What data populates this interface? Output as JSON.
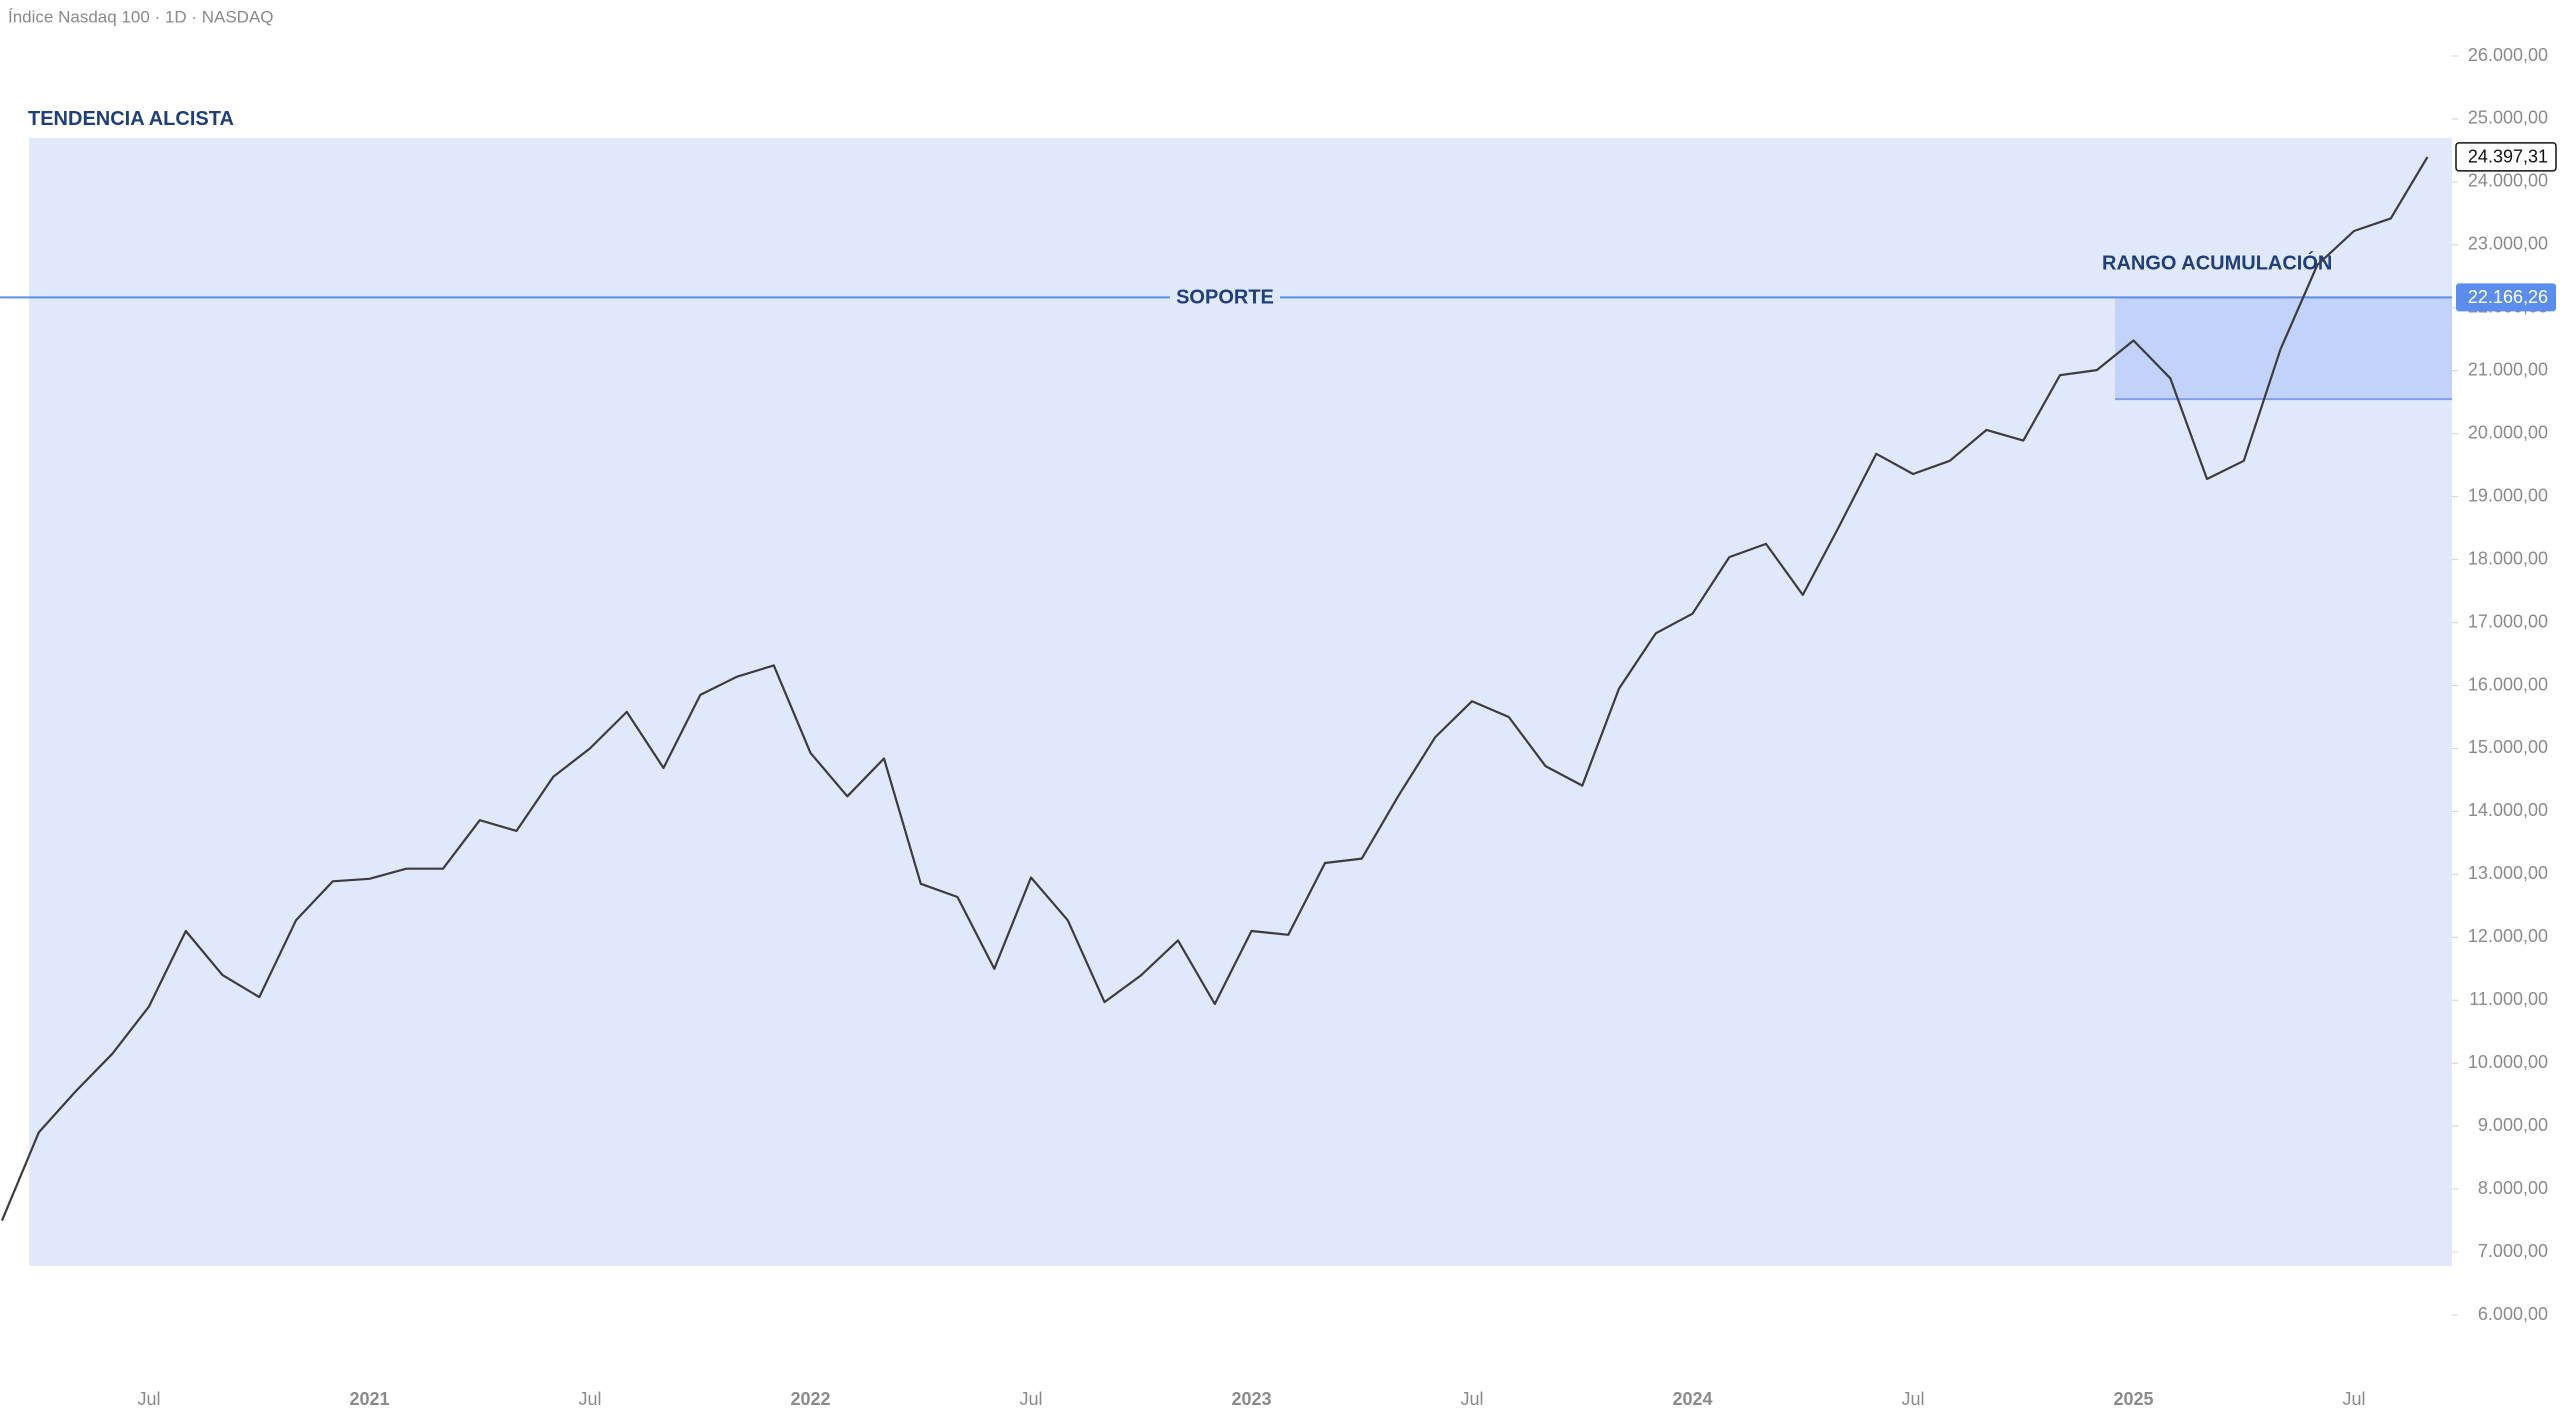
{
  "chart_data": {
    "type": "line",
    "title": "Índice Nasdaq 100 · 1D · NASDAQ",
    "categories": [
      null,
      null,
      null,
      null,
      "Jul",
      null,
      null,
      null,
      null,
      null,
      "2021",
      null,
      null,
      null,
      null,
      null,
      "Jul",
      null,
      null,
      null,
      null,
      null,
      "2022",
      null,
      null,
      null,
      null,
      null,
      "Jul",
      null,
      null,
      null,
      null,
      null,
      "2023",
      null,
      null,
      null,
      null,
      null,
      "Jul",
      null,
      null,
      null,
      null,
      null,
      "2024",
      null,
      null,
      null,
      null,
      null,
      "Jul",
      null,
      null,
      null,
      null,
      null,
      "2025",
      null,
      null,
      null,
      null,
      null,
      "Jul",
      null,
      null
    ],
    "values": [
      7500,
      8900,
      9550,
      10150,
      10900,
      12100,
      11400,
      11050,
      12270,
      12890,
      12930,
      13090,
      13090,
      13860,
      13690,
      14550,
      15000,
      15580,
      14690,
      15850,
      16140,
      16320,
      14930,
      14240,
      14840,
      12850,
      12640,
      11500,
      12950,
      12270,
      10970,
      11400,
      11950,
      10940,
      12100,
      12040,
      13180,
      13250,
      14250,
      15180,
      15750,
      15500,
      14720,
      14410,
      15950,
      16830,
      17140,
      18040,
      18250,
      17440,
      18540,
      19680,
      19360,
      19570,
      20060,
      19890,
      20930,
      21010,
      21480,
      20880,
      19280,
      19570,
      21340,
      22680,
      23220,
      23420,
      24397.31
    ],
    "color": "#3c3c3c",
    "ylim": [
      6000,
      26000
    ],
    "yticks": [
      {
        "value": 6000,
        "label": "6.000,00"
      },
      {
        "value": 7000,
        "label": "7.000,00"
      },
      {
        "value": 8000,
        "label": "8.000,00"
      },
      {
        "value": 9000,
        "label": "9.000,00"
      },
      {
        "value": 10000,
        "label": "10.000,00"
      },
      {
        "value": 11000,
        "label": "11.000,00"
      },
      {
        "value": 12000,
        "label": "12.000,00"
      },
      {
        "value": 13000,
        "label": "13.000,00"
      },
      {
        "value": 14000,
        "label": "14.000,00"
      },
      {
        "value": 15000,
        "label": "15.000,00"
      },
      {
        "value": 16000,
        "label": "16.000,00"
      },
      {
        "value": 17000,
        "label": "17.000,00"
      },
      {
        "value": 18000,
        "label": "18.000,00"
      },
      {
        "value": 19000,
        "label": "19.000,00"
      },
      {
        "value": 20000,
        "label": "20.000,00"
      },
      {
        "value": 21000,
        "label": "21.000,00"
      },
      {
        "value": 22000,
        "label": "22.000,00"
      },
      {
        "value": 23000,
        "label": "23.000,00"
      },
      {
        "value": 24000,
        "label": "24.000,00"
      },
      {
        "value": 25000,
        "label": "25.000,00"
      },
      {
        "value": 26000,
        "label": "26.000,00"
      }
    ],
    "last_price": {
      "value": 24397.31,
      "label": "24.397,31"
    },
    "support": {
      "name": "SOPORTE",
      "value": 22166.26,
      "label": "22.166,26",
      "color": "#5b8def"
    },
    "zones": [
      {
        "name": "TENDENCIA ALCISTA",
        "range": [
          6780,
          24700
        ],
        "color": "#e0e8fc"
      },
      {
        "name": "RANGO ACUMULACIÓN",
        "range": [
          20550,
          22166.26
        ],
        "color": "#c3d2fa"
      }
    ]
  }
}
